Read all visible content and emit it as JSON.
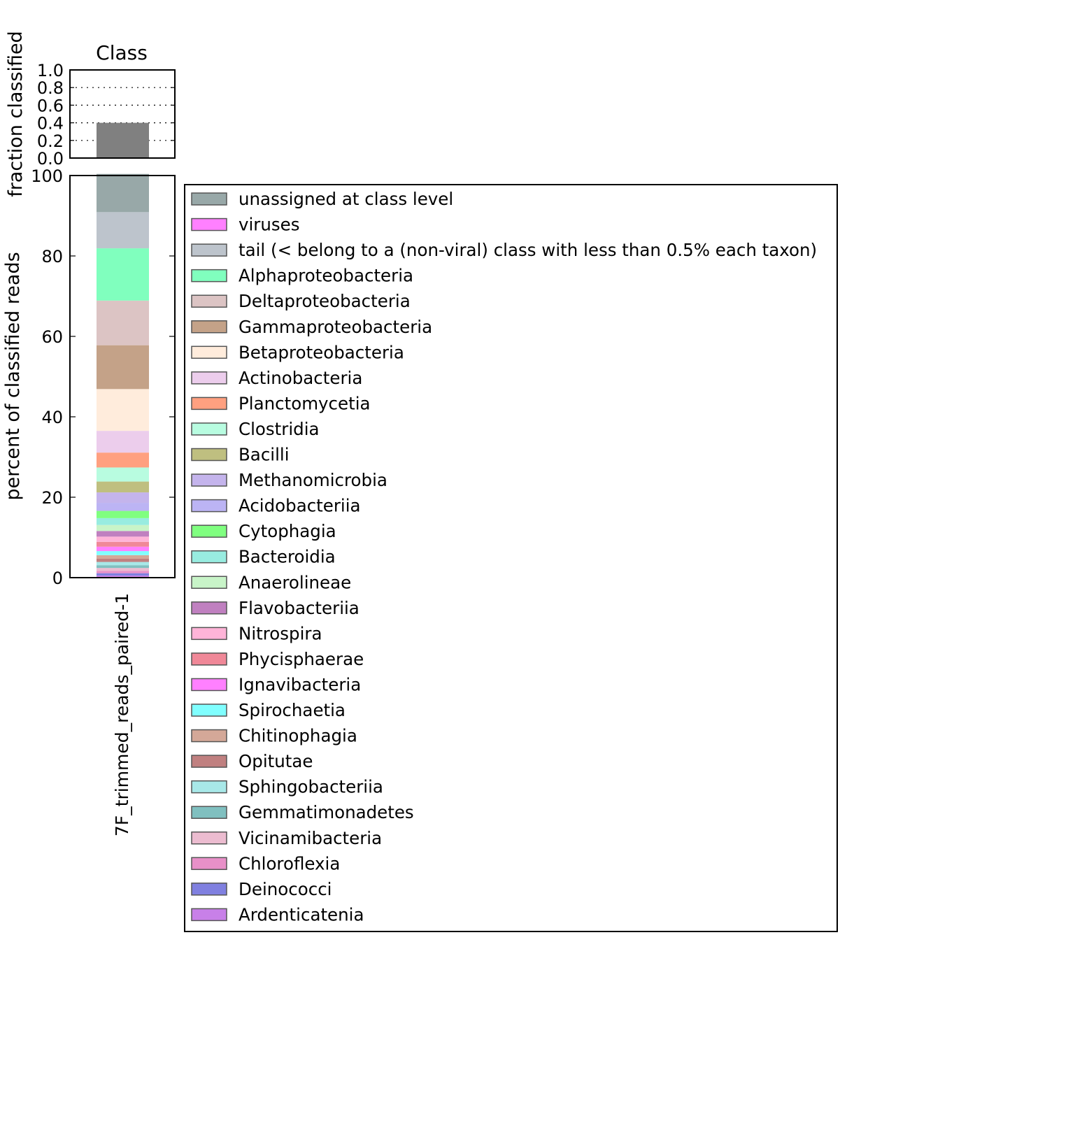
{
  "chart_data": [
    {
      "type": "bar",
      "title": "Class",
      "ylabel": "fraction classified",
      "ylim": [
        0,
        1.0
      ],
      "yticks": [
        "0.0",
        "0.2",
        "0.4",
        "0.6",
        "0.8",
        "1.0"
      ],
      "grid": true,
      "categories": [
        "7F_trimmed_reads_paired-1"
      ],
      "values": [
        0.4
      ],
      "bar_color": "#808080"
    },
    {
      "type": "bar",
      "stacked": true,
      "ylabel": "percent of classified reads",
      "ylim": [
        0,
        100
      ],
      "yticks": [
        "0",
        "20",
        "40",
        "60",
        "80",
        "100"
      ],
      "categories": [
        "7F_trimmed_reads_paired-1"
      ],
      "legend_position": "right",
      "series": [
        {
          "name": "unassigned at class level",
          "color": "#98a8a8",
          "values": [
            9.5
          ]
        },
        {
          "name": "viruses",
          "color": "#ff80ff",
          "values": [
            0.0
          ]
        },
        {
          "name": "tail (< belong to a (non-viral) class with less than 0.5% each taxon)",
          "color": "#bdc4cc",
          "values": [
            9.0
          ]
        },
        {
          "name": "Alphaproteobacteria",
          "color": "#80ffbe",
          "values": [
            13.0
          ]
        },
        {
          "name": "Deltaproteobacteria",
          "color": "#dcc4c4",
          "values": [
            11.1
          ]
        },
        {
          "name": "Gammaproteobacteria",
          "color": "#c4a288",
          "values": [
            10.9
          ]
        },
        {
          "name": "Betaproteobacteria",
          "color": "#ffecdc",
          "values": [
            10.4
          ]
        },
        {
          "name": "Actinobacteria",
          "color": "#eccdec",
          "values": [
            5.4
          ]
        },
        {
          "name": "Planctomycetia",
          "color": "#ffa080",
          "values": [
            3.7
          ]
        },
        {
          "name": "Clostridia",
          "color": "#b8fce0",
          "values": [
            3.5
          ]
        },
        {
          "name": "Bacilli",
          "color": "#bfbf80",
          "values": [
            2.7
          ]
        },
        {
          "name": "Methanomicrobia",
          "color": "#c4b4ec",
          "values": [
            2.6
          ]
        },
        {
          "name": "Acidobacteriia",
          "color": "#bcb4f4",
          "values": [
            2.0
          ]
        },
        {
          "name": "Cytophagia",
          "color": "#80ff80",
          "values": [
            1.8
          ]
        },
        {
          "name": "Bacteroidia",
          "color": "#98ece0",
          "values": [
            1.7
          ]
        },
        {
          "name": "Anaerolineae",
          "color": "#c8f4c8",
          "values": [
            1.5
          ]
        },
        {
          "name": "Flavobacteriia",
          "color": "#c080c0",
          "values": [
            1.4
          ]
        },
        {
          "name": "Nitrospira",
          "color": "#ffb4d8",
          "values": [
            1.3
          ]
        },
        {
          "name": "Phycisphaerae",
          "color": "#f08898",
          "values": [
            1.2
          ]
        },
        {
          "name": "Ignavibacteria",
          "color": "#ff80ff",
          "values": [
            1.1
          ]
        },
        {
          "name": "Spirochaetia",
          "color": "#80ffff",
          "values": [
            1.0
          ]
        },
        {
          "name": "Chitinophagia",
          "color": "#d4a898",
          "values": [
            0.9
          ]
        },
        {
          "name": "Opitutae",
          "color": "#c08080",
          "values": [
            0.8
          ]
        },
        {
          "name": "Sphingobacteriia",
          "color": "#a8e8e8",
          "values": [
            0.8
          ]
        },
        {
          "name": "Gemmatimonadetes",
          "color": "#80c0c0",
          "values": [
            0.7
          ]
        },
        {
          "name": "Vicinamibacteria",
          "color": "#ecbcd0",
          "values": [
            0.7
          ]
        },
        {
          "name": "Chloroflexia",
          "color": "#e890c8",
          "values": [
            0.6
          ]
        },
        {
          "name": "Deinococci",
          "color": "#8080e0",
          "values": [
            0.6
          ]
        },
        {
          "name": "Ardenticatenia",
          "color": "#c880e8",
          "values": [
            0.5
          ]
        }
      ]
    }
  ]
}
